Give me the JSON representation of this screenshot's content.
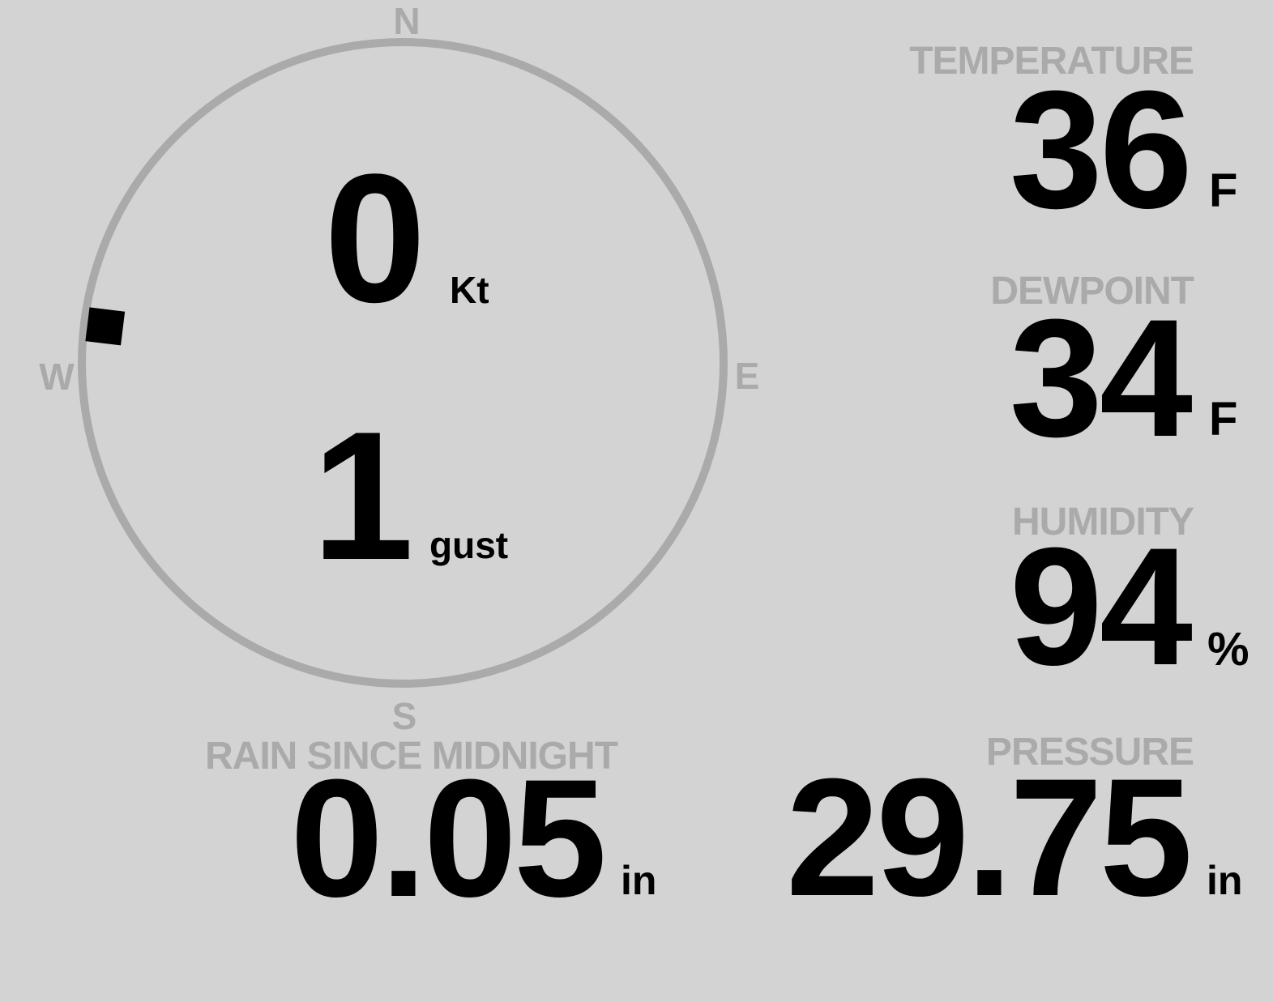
{
  "colors": {
    "background": "#d3d3d3",
    "label": "#aaaaaa",
    "value": "#000000",
    "compass_ring": "#aaaaaa",
    "wind_marker": "#000000"
  },
  "compass": {
    "north": "N",
    "south": "S",
    "east": "E",
    "west": "W",
    "wind_direction_deg": 277
  },
  "wind": {
    "speed": "0",
    "speed_unit": "Kt",
    "gust": "1",
    "gust_unit": "gust"
  },
  "temperature": {
    "label": "TEMPERATURE",
    "value": "36",
    "unit": "F"
  },
  "dewpoint": {
    "label": "DEWPOINT",
    "value": "34",
    "unit": "F"
  },
  "humidity": {
    "label": "HUMIDITY",
    "value": "94",
    "unit": "%"
  },
  "rain": {
    "label": "RAIN SINCE MIDNIGHT",
    "value": "0.05",
    "unit": "in"
  },
  "pressure": {
    "label": "PRESSURE",
    "value": "29.75",
    "unit": "in"
  }
}
